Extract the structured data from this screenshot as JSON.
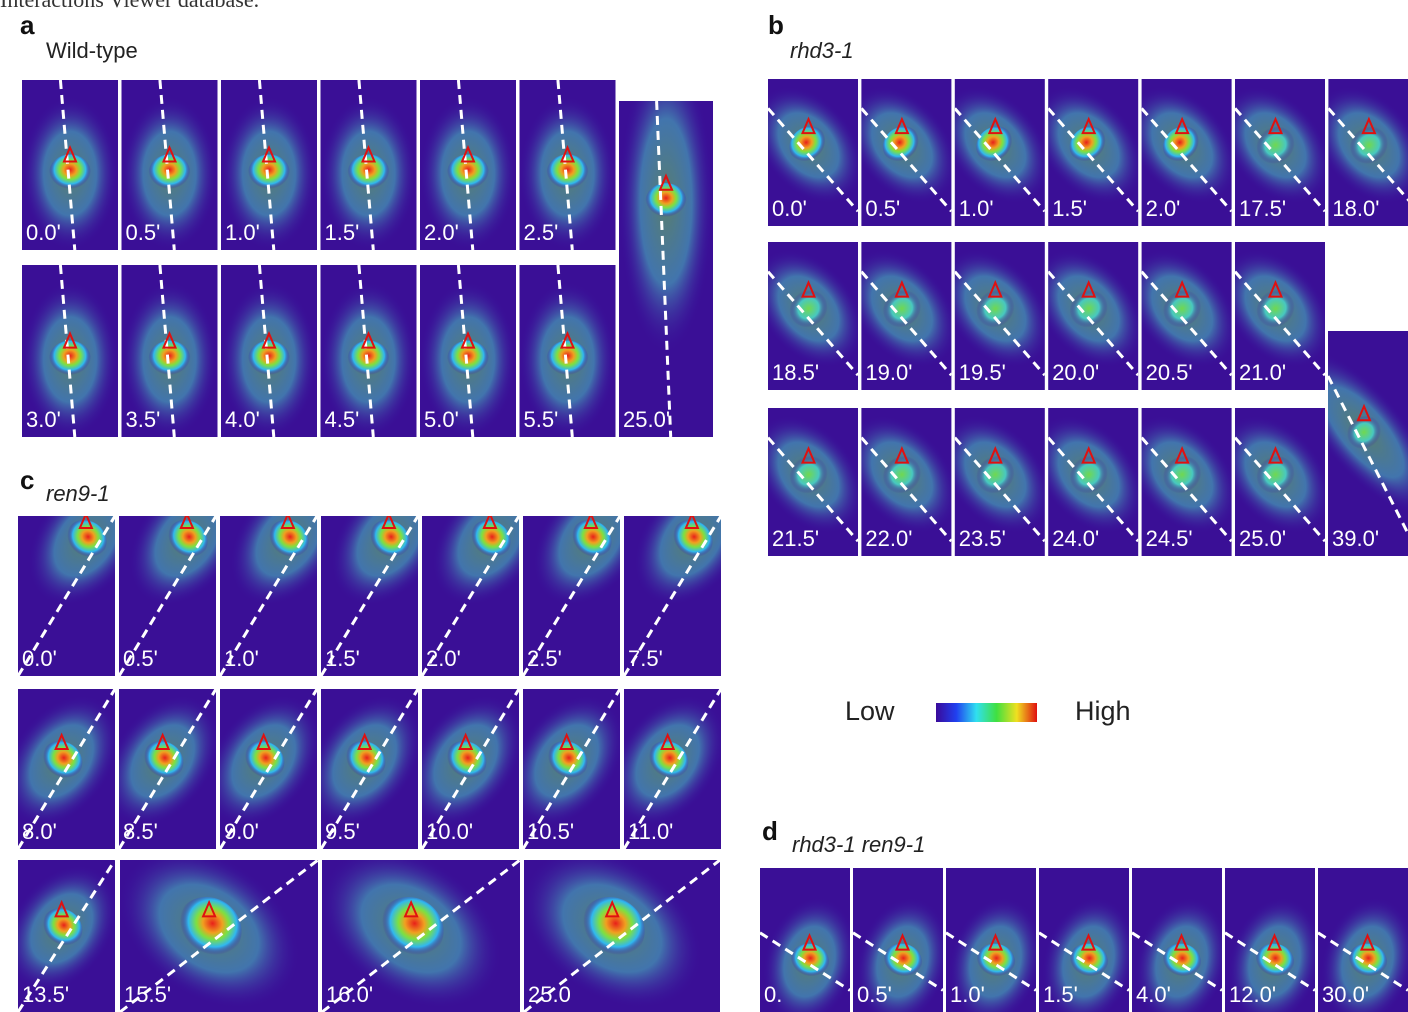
{
  "header_text": "Interactions Viewer database.",
  "panels": [
    {
      "letter": "a",
      "genotype": "Wild-type",
      "rows": [
        {
          "frames": [
            "0.0'",
            "0.5'",
            "1.0'",
            "1.5'",
            "2.0'",
            "2.5'"
          ]
        },
        {
          "frames": [
            "3.0'",
            "3.5'",
            "4.0'",
            "4.5'",
            "5.0'",
            "5.5'"
          ]
        },
        {
          "frames": [
            "25.0'"
          ]
        }
      ]
    },
    {
      "letter": "b",
      "genotype": "rhd3-1",
      "rows": [
        {
          "frames": [
            "0.0'",
            "0.5'",
            "1.0'",
            "1.5'",
            "2.0'",
            "17.5'",
            "18.0'"
          ]
        },
        {
          "frames": [
            "18.5'",
            "19.0'",
            "19.5'",
            "20.0'",
            "20.5'",
            "21.0'"
          ]
        },
        {
          "frames": [
            "21.5'",
            "22.0'",
            "23.5'",
            "24.0'",
            "24.5'",
            "25.0'"
          ]
        },
        {
          "frames": [
            "39.0'"
          ]
        }
      ]
    },
    {
      "letter": "c",
      "genotype": "ren9-1",
      "rows": [
        {
          "frames": [
            "0.0'",
            "0.5'",
            "1.0'",
            "1.5'",
            "2.0'",
            "2.5'",
            "7.5'"
          ]
        },
        {
          "frames": [
            "8.0'",
            "8.5'",
            "9.0'",
            "9.5'",
            "10.0'",
            "10.5'",
            "11.0'"
          ]
        },
        {
          "frames": [
            "13.5'",
            "15.5'",
            "16.0'",
            "25.0"
          ]
        }
      ]
    },
    {
      "letter": "d",
      "genotype": "rhd3-1 ren9-1",
      "rows": [
        {
          "frames": [
            "0.",
            "0.5'",
            "1.0'",
            "1.5'",
            "4.0'",
            "12.0'",
            "30.0'"
          ]
        }
      ]
    }
  ],
  "legend": {
    "low": "Low",
    "high": "High"
  }
}
